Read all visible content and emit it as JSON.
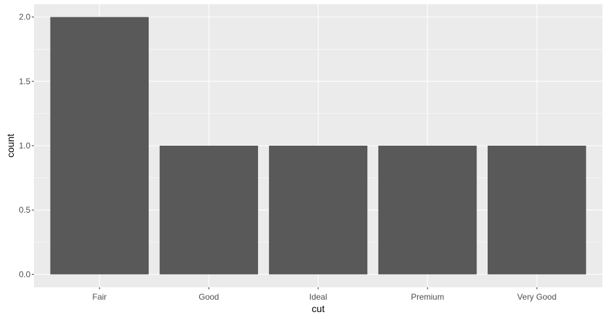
{
  "chart_data": {
    "type": "bar",
    "categories": [
      "Fair",
      "Good",
      "Ideal",
      "Premium",
      "Very Good"
    ],
    "values": [
      2,
      1,
      1,
      1,
      1
    ],
    "title": "",
    "xlabel": "cut",
    "ylabel": "count",
    "ylim": [
      -0.1,
      2.1
    ],
    "yticks": [
      0,
      0.5,
      1,
      1.5,
      2
    ],
    "ytick_labels": [
      "0.0",
      "0.5",
      "1.0",
      "1.5",
      "2.0"
    ],
    "grid": true,
    "legend": "none",
    "colors": {
      "panel_background": "#ebebeb",
      "grid_major": "#ffffff",
      "bar_fill": "#595959",
      "tick_text": "#4d4d4d",
      "tick_mark": "#333333",
      "axis_title": "#000000"
    }
  }
}
